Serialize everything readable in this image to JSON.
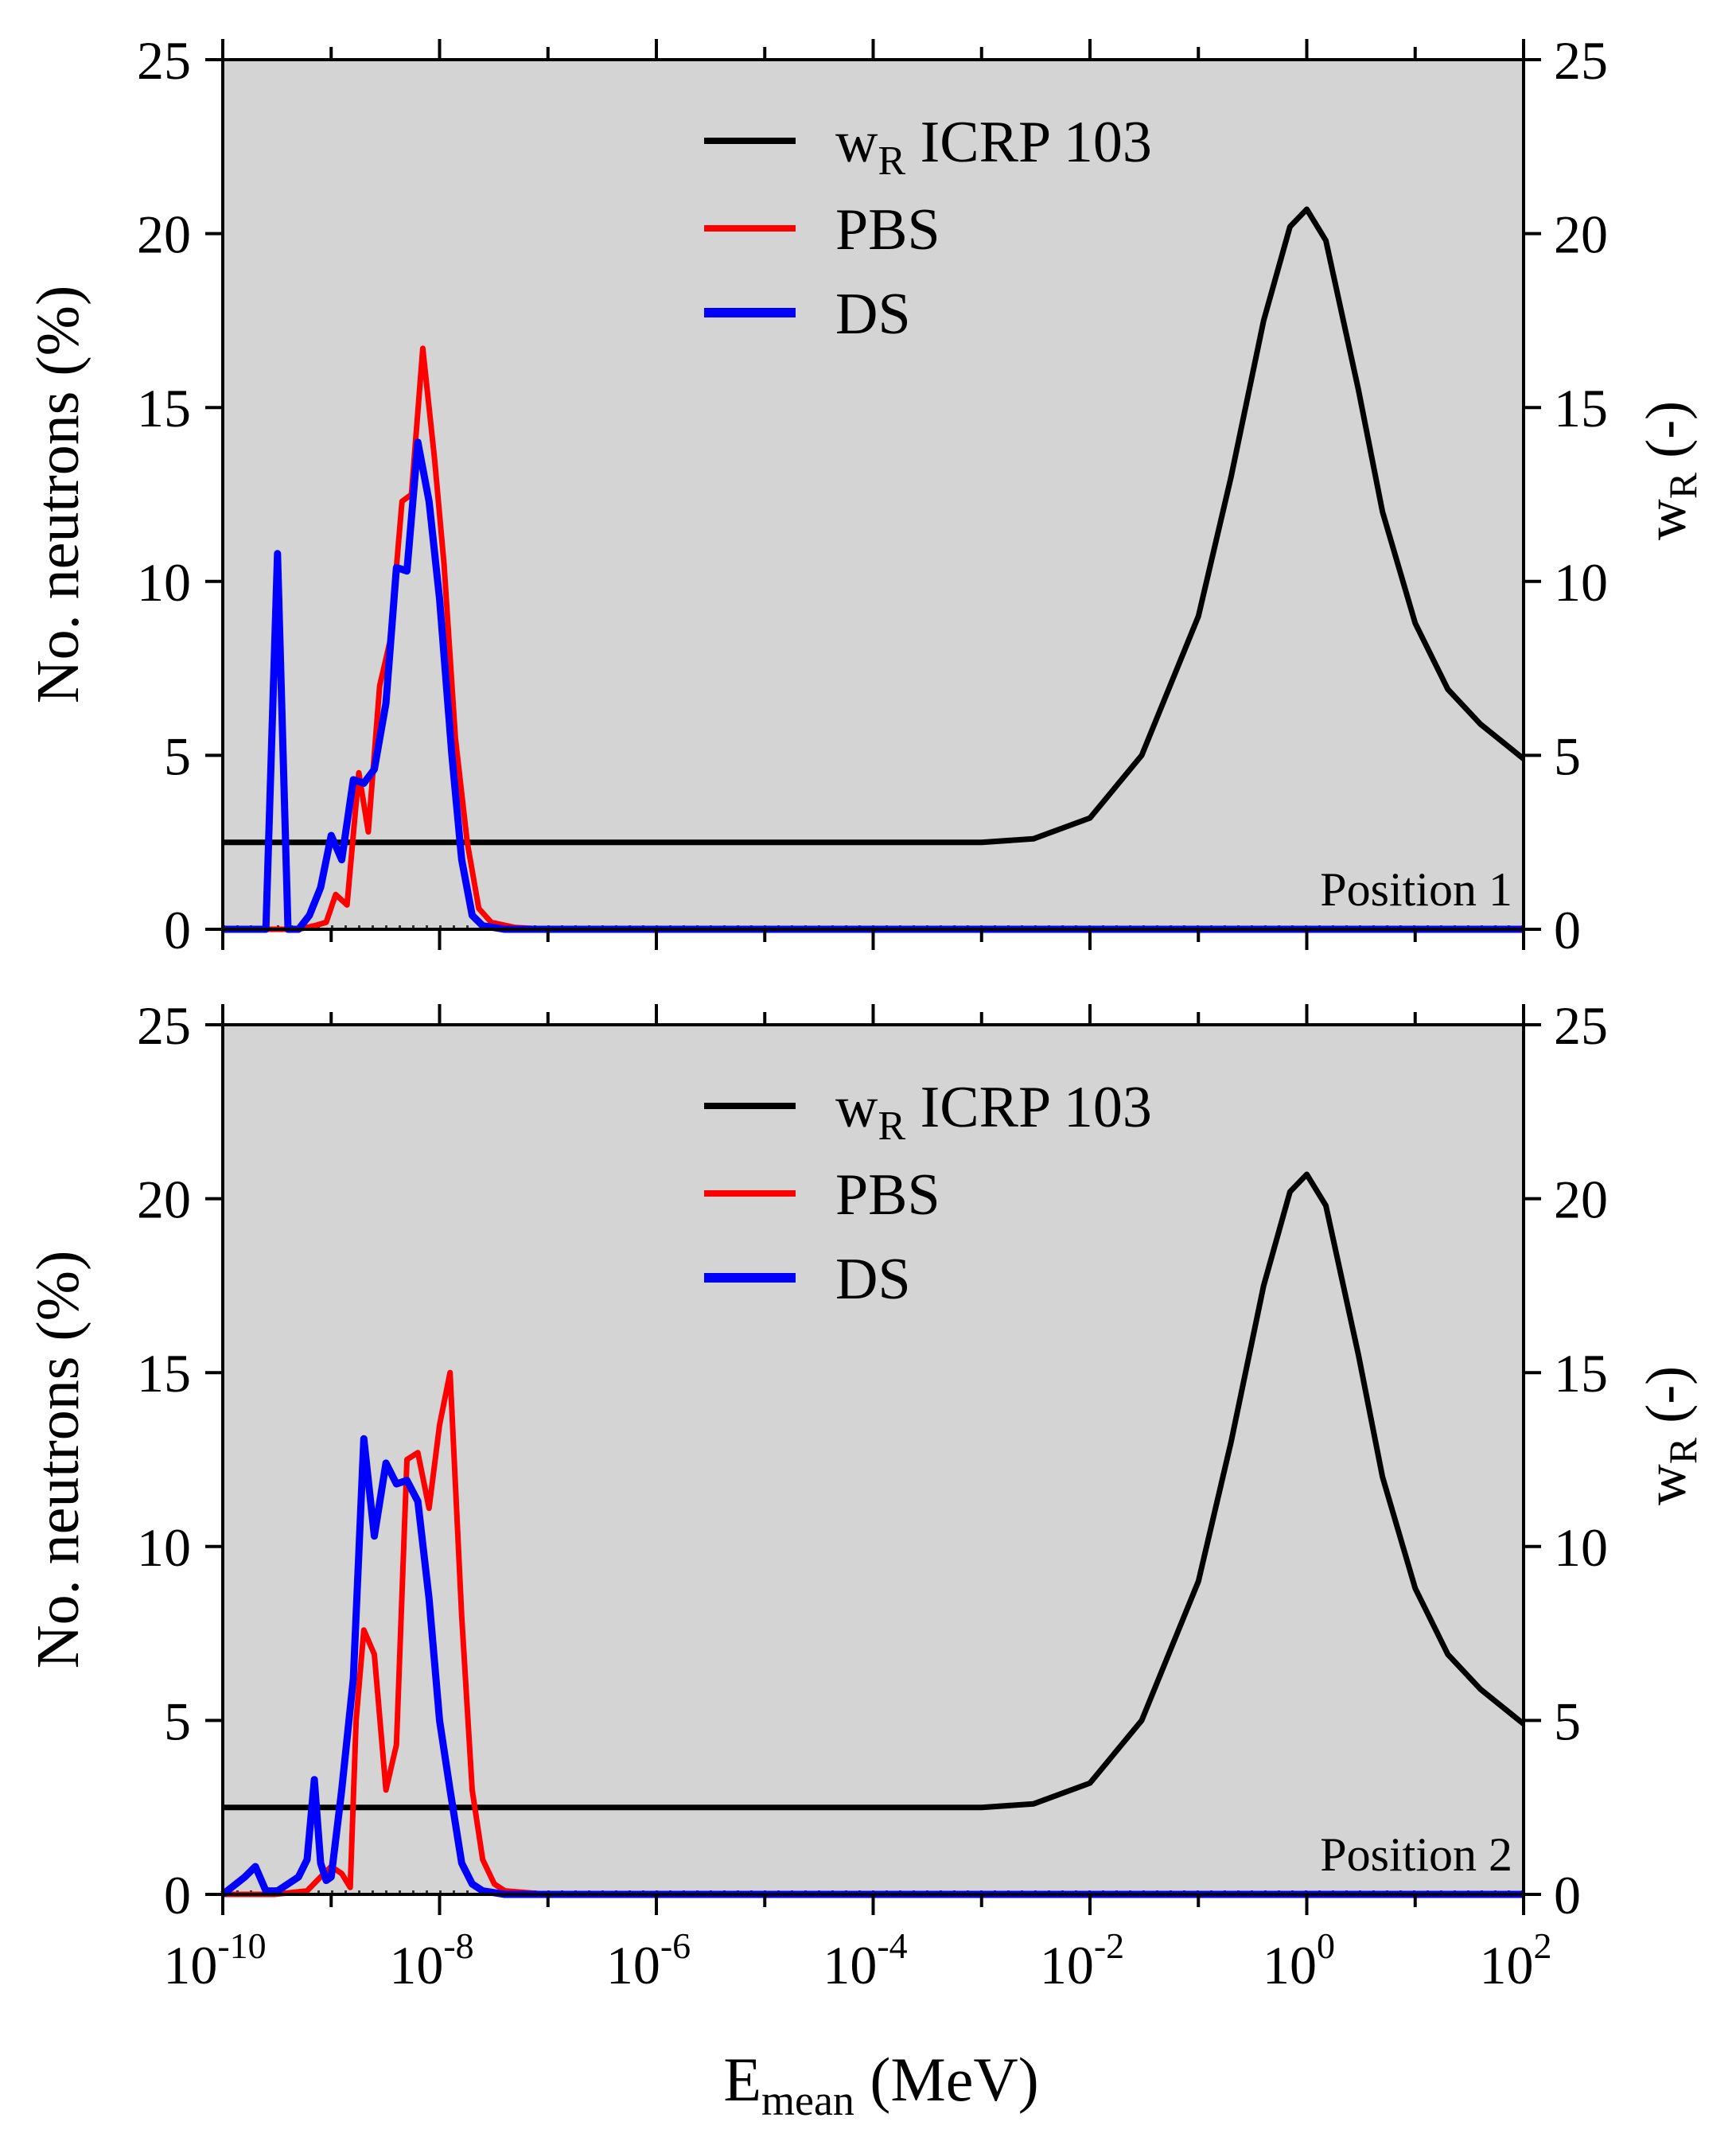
{
  "chart_data": [
    {
      "type": "line",
      "annotation": "Position 1",
      "xlabel": "E",
      "xlabel_sub": "mean",
      "xlabel_unit": " (MeV)",
      "ylabel": "No. neutrons (%)",
      "y2label": "w",
      "y2label_sub": "R",
      "y2label_unit": " (-)",
      "xscale": "log",
      "xlim": [
        1e-10,
        100
      ],
      "ylim": [
        0,
        25
      ],
      "y2lim": [
        0,
        25
      ],
      "x_tick_labels": [
        {
          "base": "10",
          "exp": "-10"
        },
        {
          "base": "10",
          "exp": "-8"
        },
        {
          "base": "10",
          "exp": "-6"
        },
        {
          "base": "10",
          "exp": "-4"
        },
        {
          "base": "10",
          "exp": "-2"
        },
        {
          "base": "10",
          "exp": "0"
        },
        {
          "base": "10",
          "exp": "2"
        }
      ],
      "y_ticks": [
        0,
        5,
        10,
        15,
        20,
        25
      ],
      "legend": {
        "placement": "top-center"
      },
      "background": "#d4d4d4",
      "series": [
        {
          "name": "w",
          "name_sub": "R",
          "name_rest": " ICRP 103",
          "axis": "right",
          "color": "#000000",
          "points": [
            [
              1e-10,
              2.5
            ],
            [
              0.001,
              2.5
            ],
            [
              0.003,
              2.6
            ],
            [
              0.01,
              3.2
            ],
            [
              0.03,
              5.0
            ],
            [
              0.1,
              9.0
            ],
            [
              0.2,
              13.0
            ],
            [
              0.4,
              17.5
            ],
            [
              0.7,
              20.2
            ],
            [
              1,
              20.7
            ],
            [
              1.5,
              19.8
            ],
            [
              3,
              15.5
            ],
            [
              5,
              12.0
            ],
            [
              10,
              8.8
            ],
            [
              20,
              6.9
            ],
            [
              40,
              5.9
            ],
            [
              100,
              4.9
            ]
          ]
        },
        {
          "name": "PBS",
          "axis": "left",
          "color": "#ff0000",
          "points": [
            [
              1e-10,
              0
            ],
            [
              5e-10,
              0
            ],
            [
              7e-10,
              0.1
            ],
            [
              9e-10,
              0.2
            ],
            [
              1.1e-09,
              1.0
            ],
            [
              1.4e-09,
              0.7
            ],
            [
              1.8e-09,
              4.5
            ],
            [
              2.2e-09,
              2.8
            ],
            [
              2.8e-09,
              7.0
            ],
            [
              3.5e-09,
              8.3
            ],
            [
              4.5e-09,
              12.3
            ],
            [
              5.5e-09,
              12.5
            ],
            [
              7e-09,
              16.7
            ],
            [
              9e-09,
              13.5
            ],
            [
              1.1e-08,
              10.5
            ],
            [
              1.4e-08,
              5.5
            ],
            [
              1.8e-08,
              2.5
            ],
            [
              2.3e-08,
              0.6
            ],
            [
              3e-08,
              0.2
            ],
            [
              5e-08,
              0.05
            ],
            [
              1e-07,
              0
            ],
            [
              100,
              0
            ]
          ]
        },
        {
          "name": "DS",
          "axis": "left",
          "color": "#0000ff",
          "points": [
            [
              1e-10,
              0
            ],
            [
              2.5e-10,
              0
            ],
            [
              3.2e-10,
              10.8
            ],
            [
              4e-10,
              0
            ],
            [
              5e-10,
              0
            ],
            [
              6.3e-10,
              0.4
            ],
            [
              8e-10,
              1.2
            ],
            [
              1e-09,
              2.7
            ],
            [
              1.25e-09,
              2.0
            ],
            [
              1.6e-09,
              4.3
            ],
            [
              2e-09,
              4.2
            ],
            [
              2.5e-09,
              4.6
            ],
            [
              3.2e-09,
              6.5
            ],
            [
              4e-09,
              10.4
            ],
            [
              5e-09,
              10.3
            ],
            [
              6.3e-09,
              14.0
            ],
            [
              8e-09,
              12.3
            ],
            [
              1e-08,
              9.5
            ],
            [
              1.3e-08,
              5.0
            ],
            [
              1.6e-08,
              2.0
            ],
            [
              2e-08,
              0.4
            ],
            [
              2.5e-08,
              0.1
            ],
            [
              4e-08,
              0
            ],
            [
              100,
              0
            ]
          ]
        }
      ]
    },
    {
      "type": "line",
      "annotation": "Position 2",
      "xlabel": "E",
      "xlabel_sub": "mean",
      "xlabel_unit": " (MeV)",
      "ylabel": "No. neutrons (%)",
      "y2label": "w",
      "y2label_sub": "R",
      "y2label_unit": " (-)",
      "xscale": "log",
      "xlim": [
        1e-10,
        100
      ],
      "ylim": [
        0,
        25
      ],
      "y2lim": [
        0,
        25
      ],
      "x_tick_labels": [
        {
          "base": "10",
          "exp": "-10"
        },
        {
          "base": "10",
          "exp": "-8"
        },
        {
          "base": "10",
          "exp": "-6"
        },
        {
          "base": "10",
          "exp": "-4"
        },
        {
          "base": "10",
          "exp": "-2"
        },
        {
          "base": "10",
          "exp": "0"
        },
        {
          "base": "10",
          "exp": "2"
        }
      ],
      "y_ticks": [
        0,
        5,
        10,
        15,
        20,
        25
      ],
      "legend": {
        "placement": "top-center"
      },
      "background": "#d4d4d4",
      "series": [
        {
          "name": "w",
          "name_sub": "R",
          "name_rest": " ICRP 103",
          "axis": "right",
          "color": "#000000",
          "points": [
            [
              1e-10,
              2.5
            ],
            [
              0.001,
              2.5
            ],
            [
              0.003,
              2.6
            ],
            [
              0.01,
              3.2
            ],
            [
              0.03,
              5.0
            ],
            [
              0.1,
              9.0
            ],
            [
              0.2,
              13.0
            ],
            [
              0.4,
              17.5
            ],
            [
              0.7,
              20.2
            ],
            [
              1,
              20.7
            ],
            [
              1.5,
              19.8
            ],
            [
              3,
              15.5
            ],
            [
              5,
              12.0
            ],
            [
              10,
              8.8
            ],
            [
              20,
              6.9
            ],
            [
              40,
              5.9
            ],
            [
              100,
              4.9
            ]
          ]
        },
        {
          "name": "PBS",
          "axis": "left",
          "color": "#ff0000",
          "points": [
            [
              1e-10,
              0
            ],
            [
              3e-10,
              0
            ],
            [
              6e-10,
              0.1
            ],
            [
              8e-10,
              0.5
            ],
            [
              1e-09,
              0.8
            ],
            [
              1.25e-09,
              0.6
            ],
            [
              1.5e-09,
              0.2
            ],
            [
              1.7e-09,
              5.0
            ],
            [
              2e-09,
              7.6
            ],
            [
              2.5e-09,
              6.9
            ],
            [
              3.2e-09,
              3.0
            ],
            [
              4e-09,
              4.3
            ],
            [
              5e-09,
              12.5
            ],
            [
              6.3e-09,
              12.7
            ],
            [
              8e-09,
              11.1
            ],
            [
              1e-08,
              13.5
            ],
            [
              1.25e-08,
              15.0
            ],
            [
              1.6e-08,
              8.0
            ],
            [
              2e-08,
              3.0
            ],
            [
              2.5e-08,
              1.0
            ],
            [
              3.2e-08,
              0.3
            ],
            [
              4e-08,
              0.1
            ],
            [
              1e-07,
              0
            ],
            [
              100,
              0
            ]
          ]
        },
        {
          "name": "DS",
          "axis": "left",
          "color": "#0000ff",
          "points": [
            [
              1e-10,
              0
            ],
            [
              1.6e-10,
              0.5
            ],
            [
              2e-10,
              0.8
            ],
            [
              2.5e-10,
              0.1
            ],
            [
              3.2e-10,
              0.1
            ],
            [
              4e-10,
              0.3
            ],
            [
              5e-10,
              0.5
            ],
            [
              6e-10,
              1.0
            ],
            [
              7e-10,
              3.3
            ],
            [
              8e-10,
              0.9
            ],
            [
              9e-10,
              0.4
            ],
            [
              1e-09,
              0.5
            ],
            [
              1.25e-09,
              3.0
            ],
            [
              1.6e-09,
              6.2
            ],
            [
              2e-09,
              13.1
            ],
            [
              2.5e-09,
              10.3
            ],
            [
              3.2e-09,
              12.4
            ],
            [
              4e-09,
              11.8
            ],
            [
              5e-09,
              11.9
            ],
            [
              6.3e-09,
              11.3
            ],
            [
              8e-09,
              8.5
            ],
            [
              1e-08,
              5.0
            ],
            [
              1.25e-08,
              3.0
            ],
            [
              1.6e-08,
              0.9
            ],
            [
              2e-08,
              0.3
            ],
            [
              2.5e-08,
              0.1
            ],
            [
              4e-08,
              0
            ],
            [
              100,
              0
            ]
          ]
        }
      ]
    }
  ]
}
